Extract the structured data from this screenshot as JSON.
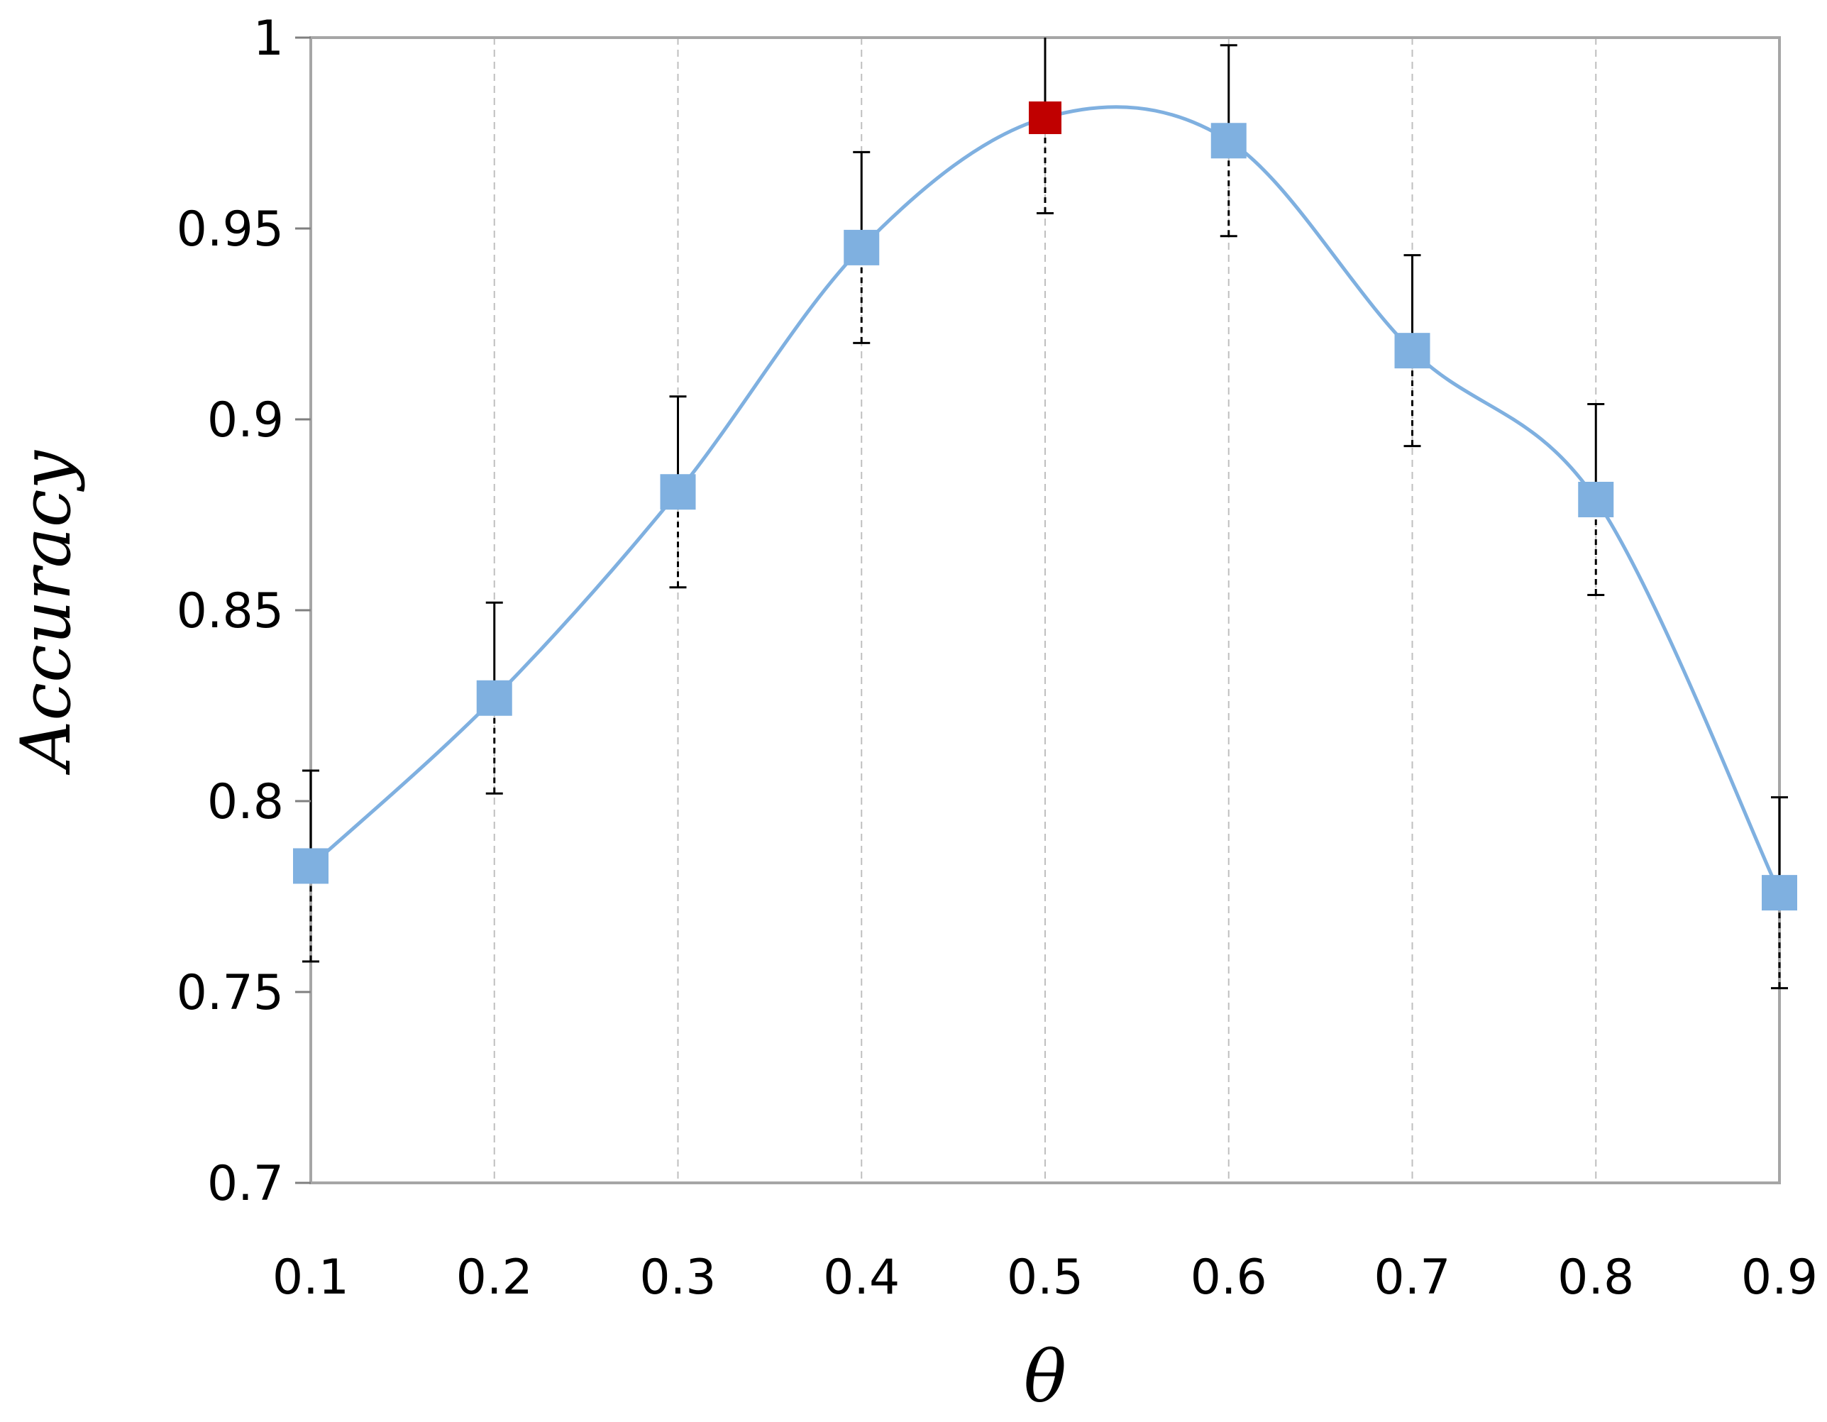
{
  "chart_data": {
    "type": "line",
    "xlabel": "θ",
    "ylabel": "Accuracy",
    "x": [
      0.1,
      0.2,
      0.3,
      0.4,
      0.5,
      0.6,
      0.7,
      0.8,
      0.9
    ],
    "x_tick_labels": [
      "0.1",
      "0.2",
      "0.3",
      "0.4",
      "0.5",
      "0.6",
      "0.7",
      "0.8",
      "0.9"
    ],
    "y_tick_labels": [
      "0.7",
      "0.75",
      "0.8",
      "0.85",
      "0.9",
      "0.95",
      "1"
    ],
    "y_ticks": [
      0.7,
      0.75,
      0.8,
      0.85,
      0.9,
      0.95,
      1.0
    ],
    "xlim": [
      0.1,
      0.9
    ],
    "ylim": [
      0.7,
      1.0
    ],
    "series": [
      {
        "values": [
          0.783,
          0.827,
          0.881,
          0.945,
          0.979,
          0.973,
          0.918,
          0.879,
          0.776
        ],
        "error": [
          0.025,
          0.025,
          0.025,
          0.025,
          0.025,
          0.025,
          0.025,
          0.025,
          0.025
        ],
        "smoothed": true,
        "highlight_index": 4
      }
    ],
    "grid": "vertical dashed drop lines at each x value",
    "colors": {
      "line": "#7fb0e0",
      "marker": "#7fb0e0",
      "highlight_marker": "#c00000",
      "error_bar": "#000000",
      "frame": "#a6a6a6",
      "grid": "#bfbfbf"
    }
  }
}
